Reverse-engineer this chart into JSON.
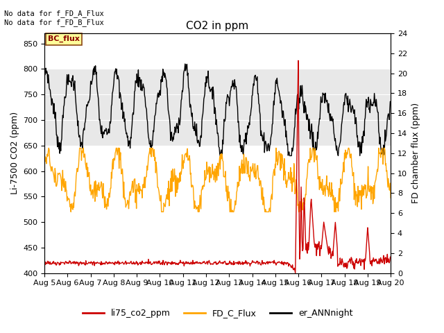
{
  "title": "CO2 in ppm",
  "ylabel_left": "Li-7500 CO2 (ppm)",
  "ylabel_right": "FD chamber flux (ppm)",
  "text_upper_left": "No data for f_FD_A_Flux\nNo data for f_FD_B_Flux",
  "bc_flux_label": "BC_flux",
  "xlim_days": [
    5,
    20
  ],
  "ylim_left": [
    400,
    870
  ],
  "ylim_right": [
    0,
    24
  ],
  "yticks_left": [
    400,
    450,
    500,
    550,
    600,
    650,
    700,
    750,
    800,
    850
  ],
  "yticks_right": [
    0,
    2,
    4,
    6,
    8,
    10,
    12,
    14,
    16,
    18,
    20,
    22,
    24
  ],
  "xtick_labels": [
    "Aug 5",
    "Aug 6",
    "Aug 7",
    "Aug 8",
    "Aug 9",
    "Aug 10",
    "Aug 11",
    "Aug 12",
    "Aug 13",
    "Aug 14",
    "Aug 15",
    "Aug 16",
    "Aug 17",
    "Aug 18",
    "Aug 19",
    "Aug 20"
  ],
  "legend_entries": [
    "li75_co2_ppm",
    "FD_C_Flux",
    "er_ANNnight"
  ],
  "legend_colors": [
    "#cc0000",
    "#FFA500",
    "#000000"
  ],
  "shading_color": "#e8e8e8",
  "line_colors": {
    "li75": "#cc0000",
    "fd_c": "#FFA500",
    "er_ann": "#000000"
  },
  "fig_width": 6.4,
  "fig_height": 4.8,
  "dpi": 100
}
